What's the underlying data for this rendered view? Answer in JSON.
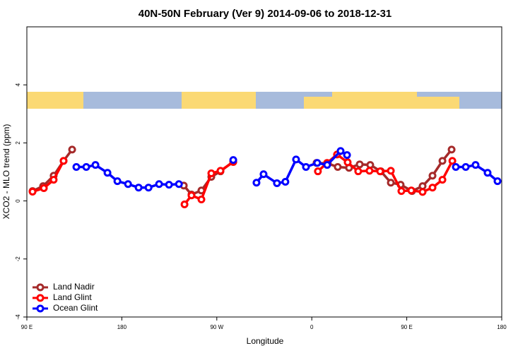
{
  "chart_data": {
    "type": "line",
    "title": "40N-50N February (Ver 9)   2014-09-06 to 2018-12-31",
    "x_label": "Longitude",
    "y_label": "XCO2 - MLO trend (ppm)",
    "xlim": [
      90,
      540
    ],
    "ylim": [
      -4,
      6
    ],
    "xticks": [
      {
        "value": 90,
        "label": "90 E"
      },
      {
        "value": 180,
        "label": "180"
      },
      {
        "value": 270,
        "label": "90 W"
      },
      {
        "value": 360,
        "label": "0"
      },
      {
        "value": 450,
        "label": "90 E"
      },
      {
        "value": 540,
        "label": "180"
      }
    ],
    "yticks": [
      -4,
      -2,
      0,
      2,
      4
    ],
    "legend": "bottom-left",
    "series": [
      {
        "name": "Land Nadir",
        "color": "#a52a2a",
        "x": [
          95.4,
          105.4,
          115.4,
          124.8,
          132.9,
          null,
          238.7,
          246,
          255.4,
          264.8,
          273.5,
          285.6,
          null,
          364.5,
          375.2,
          384.6,
          395.3,
          405.4,
          415.4,
          425.5,
          434.9,
          444.2,
          455,
          465,
          474.4,
          483.8,
          492.5
        ],
        "values": [
          0.34,
          0.51,
          0.87,
          1.38,
          1.77,
          null,
          0.53,
          0.22,
          0.36,
          0.83,
          1.02,
          1.36,
          null,
          1.31,
          1.29,
          1.17,
          1.14,
          1.26,
          1.24,
          1.02,
          0.63,
          0.56,
          0.34,
          0.51,
          0.87,
          1.38,
          1.77
        ]
      },
      {
        "name": "Land Glint",
        "color": "#ff0000",
        "x": [
          95.4,
          106.1,
          115.4,
          124.8,
          null,
          239.4,
          246,
          255.4,
          264.8,
          273.5,
          285.6,
          null,
          365.8,
          374.5,
          383.9,
          394,
          404,
          414.7,
          424.8,
          434.9,
          444.9,
          454.3,
          465,
          474.4,
          483.8,
          493.2
        ],
        "values": [
          0.32,
          0.44,
          0.73,
          1.38,
          null,
          -0.12,
          0.19,
          0.05,
          0.95,
          1.04,
          1.34,
          null,
          1.02,
          1.31,
          1.6,
          1.33,
          1.02,
          1.04,
          1.02,
          1.04,
          0.34,
          0.36,
          0.31,
          0.46,
          0.73,
          1.38
        ]
      },
      {
        "name": "Ocean Glint",
        "color": "#0000ff",
        "x": [
          136.9,
          146.3,
          155,
          166.4,
          175.8,
          185.9,
          195.9,
          205.3,
          215.3,
          224.7,
          234.1,
          null,
          285.6,
          null,
          307.6,
          314.3,
          327,
          335,
          345.1,
          354.5,
          365.2,
          374.6,
          387.3,
          393.4,
          null,
          496.5,
          505.9,
          515.2,
          526.6,
          536
        ],
        "values": [
          1.17,
          1.17,
          1.24,
          0.97,
          0.68,
          0.58,
          0.46,
          0.46,
          0.58,
          0.56,
          0.58,
          null,
          1.41,
          null,
          0.63,
          0.92,
          0.61,
          0.66,
          1.43,
          1.17,
          1.31,
          1.24,
          1.72,
          1.58,
          null,
          1.17,
          1.17,
          1.24,
          0.97,
          0.68
        ]
      }
    ]
  }
}
